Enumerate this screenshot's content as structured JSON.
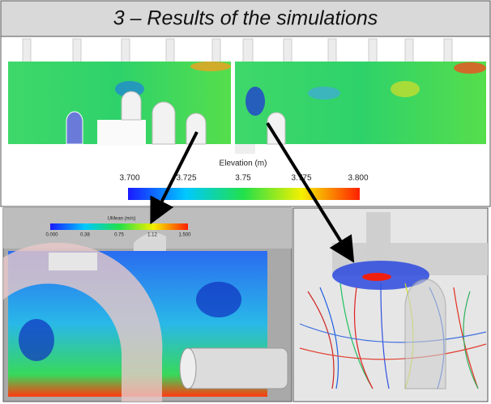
{
  "header": {
    "title": "3 – Results of the simulations"
  },
  "top_panel": {
    "colorbar": {
      "title": "Elevation (m)",
      "labels": [
        "3.700",
        "3.725",
        "3.75",
        "3.775",
        "3.800"
      ]
    }
  },
  "bottom_left_panel": {
    "colorbar": {
      "title": "UMean (m/s)",
      "labels": [
        "0.000",
        "0.38",
        "0.75",
        "1.12",
        "1.500"
      ]
    }
  }
}
